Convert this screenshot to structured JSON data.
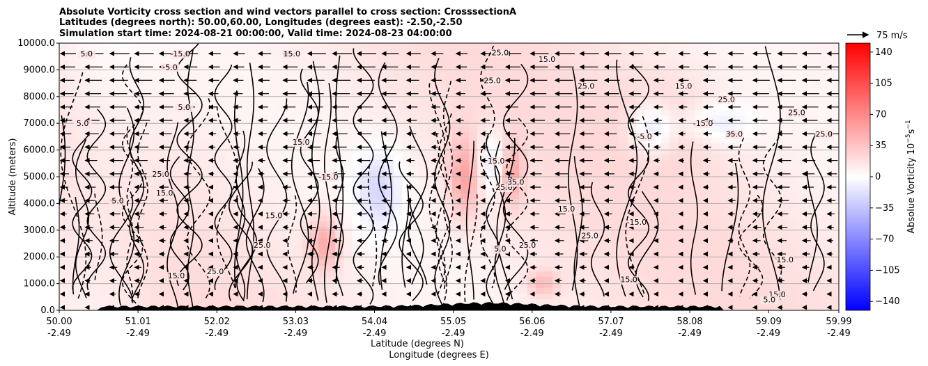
{
  "chart_data": {
    "type": "heatmap",
    "title_lines": [
      "Absolute Vorticity cross section and wind vectors parallel to cross section: CrosssectionA",
      "Latitudes (degrees north): 50.00,60.00, Longitudes (degrees east): -2.50,-2.50",
      "Simulation start time: 2024-08-21 00:00:00, Valid time: 2024-08-23 04:00:00"
    ],
    "ylabel": "Altitude (meters)",
    "xlabel_lines": [
      "Latitude (degrees N)",
      "Longitude (degrees E)"
    ],
    "x_ticks": [
      {
        "lat": "50.00",
        "lon": "-2.49",
        "x": 50.0
      },
      {
        "lat": "51.01",
        "lon": "-2.49",
        "x": 51.01
      },
      {
        "lat": "52.02",
        "lon": "-2.49",
        "x": 52.02
      },
      {
        "lat": "53.03",
        "lon": "-2.49",
        "x": 53.03
      },
      {
        "lat": "54.04",
        "lon": "-2.49",
        "x": 54.04
      },
      {
        "lat": "55.05",
        "lon": "-2.49",
        "x": 55.05
      },
      {
        "lat": "56.06",
        "lon": "-2.49",
        "x": 56.06
      },
      {
        "lat": "57.07",
        "lon": "-2.49",
        "x": 57.07
      },
      {
        "lat": "58.08",
        "lon": "-2.49",
        "x": 58.08
      },
      {
        "lat": "59.09",
        "lon": "-2.49",
        "x": 59.09
      },
      {
        "lat": "59.99",
        "lon": "-2.49",
        "x": 59.99
      }
    ],
    "xlim": [
      50.0,
      59.99
    ],
    "y_ticks": [
      {
        "label": "0.0",
        "y": 0
      },
      {
        "label": "1000.0",
        "y": 1000
      },
      {
        "label": "2000.0",
        "y": 2000
      },
      {
        "label": "3000.0",
        "y": 3000
      },
      {
        "label": "4000.0",
        "y": 4000
      },
      {
        "label": "5000.0",
        "y": 5000
      },
      {
        "label": "6000.0",
        "y": 6000
      },
      {
        "label": "7000.0",
        "y": 7000
      },
      {
        "label": "8000.0",
        "y": 8000
      },
      {
        "label": "9000.0",
        "y": 9000
      },
      {
        "label": "10000.0",
        "y": 10000
      }
    ],
    "ylim": [
      0,
      10000
    ],
    "grid": "horizontal",
    "colorbar": {
      "label": "Absolue Vorticity 10",
      "label_exponent": "−5",
      "label_unit": "s",
      "label_unit_exponent": "−1",
      "ticks": [
        {
          "label": "140",
          "v": 140
        },
        {
          "label": "105",
          "v": 105
        },
        {
          "label": "70",
          "v": 70
        },
        {
          "label": "35",
          "v": 35
        },
        {
          "label": "0",
          "v": 0
        },
        {
          "label": "−35",
          "v": -35
        },
        {
          "label": "−70",
          "v": -70
        },
        {
          "label": "−105",
          "v": -105
        },
        {
          "label": "−140",
          "v": -140
        }
      ],
      "range": [
        -150,
        150
      ],
      "colormap": "bwr"
    },
    "quiver_key": {
      "label": "75 m/s"
    },
    "contour_labels": [
      {
        "text": "5.0",
        "x": 50.35,
        "y": 9500
      },
      {
        "text": "-15.0",
        "x": 51.55,
        "y": 9500
      },
      {
        "text": "-5.0",
        "x": 51.42,
        "y": 9000
      },
      {
        "text": "15.0",
        "x": 52.98,
        "y": 9500
      },
      {
        "text": "25.0",
        "x": 55.65,
        "y": 9550
      },
      {
        "text": "25.0",
        "x": 55.55,
        "y": 8500
      },
      {
        "text": "15.0",
        "x": 56.25,
        "y": 9300
      },
      {
        "text": "25.0",
        "x": 56.75,
        "y": 8300
      },
      {
        "text": "15.0",
        "x": 58.0,
        "y": 8300
      },
      {
        "text": "25.0",
        "x": 58.55,
        "y": 7800
      },
      {
        "text": "25.0",
        "x": 59.45,
        "y": 7300
      },
      {
        "text": "25.0",
        "x": 59.8,
        "y": 6500
      },
      {
        "text": "-15.0",
        "x": 58.25,
        "y": 6900
      },
      {
        "text": "35.0",
        "x": 58.65,
        "y": 6500
      },
      {
        "text": "-5.0",
        "x": 57.5,
        "y": 6400
      },
      {
        "text": "-15.0",
        "x": 53.45,
        "y": 4900
      },
      {
        "text": "15.0",
        "x": 52.75,
        "y": 3450
      },
      {
        "text": "25.0",
        "x": 52.6,
        "y": 2350
      },
      {
        "text": "5.0",
        "x": 55.65,
        "y": 2200
      },
      {
        "text": "25.0",
        "x": 56.0,
        "y": 2350
      },
      {
        "text": "25.0",
        "x": 56.8,
        "y": 2700
      },
      {
        "text": "-15.0",
        "x": 57.4,
        "y": 3200
      },
      {
        "text": "15.0",
        "x": 56.5,
        "y": 3700
      },
      {
        "text": "15.0",
        "x": 59.3,
        "y": 1800
      },
      {
        "text": "15.0",
        "x": 59.2,
        "y": 500
      },
      {
        "text": "5.0",
        "x": 59.1,
        "y": 300
      },
      {
        "text": "15.0",
        "x": 57.3,
        "y": 1050
      },
      {
        "text": "25.0",
        "x": 52.0,
        "y": 1350
      },
      {
        "text": "15.0",
        "x": 51.5,
        "y": 1200
      },
      {
        "text": "5.0",
        "x": 50.75,
        "y": 4000
      },
      {
        "text": "15.0",
        "x": 51.35,
        "y": 4300
      },
      {
        "text": "5.0",
        "x": 51.6,
        "y": 7500
      },
      {
        "text": "5.0",
        "x": 50.3,
        "y": 6900
      },
      {
        "text": "25.0",
        "x": 51.3,
        "y": 5000
      },
      {
        "text": "15.0",
        "x": 53.1,
        "y": 6200
      },
      {
        "text": "25.0",
        "x": 55.7,
        "y": 4500
      },
      {
        "text": "35.0",
        "x": 55.85,
        "y": 4700
      },
      {
        "text": "15.0",
        "x": 55.6,
        "y": 5500
      }
    ]
  }
}
